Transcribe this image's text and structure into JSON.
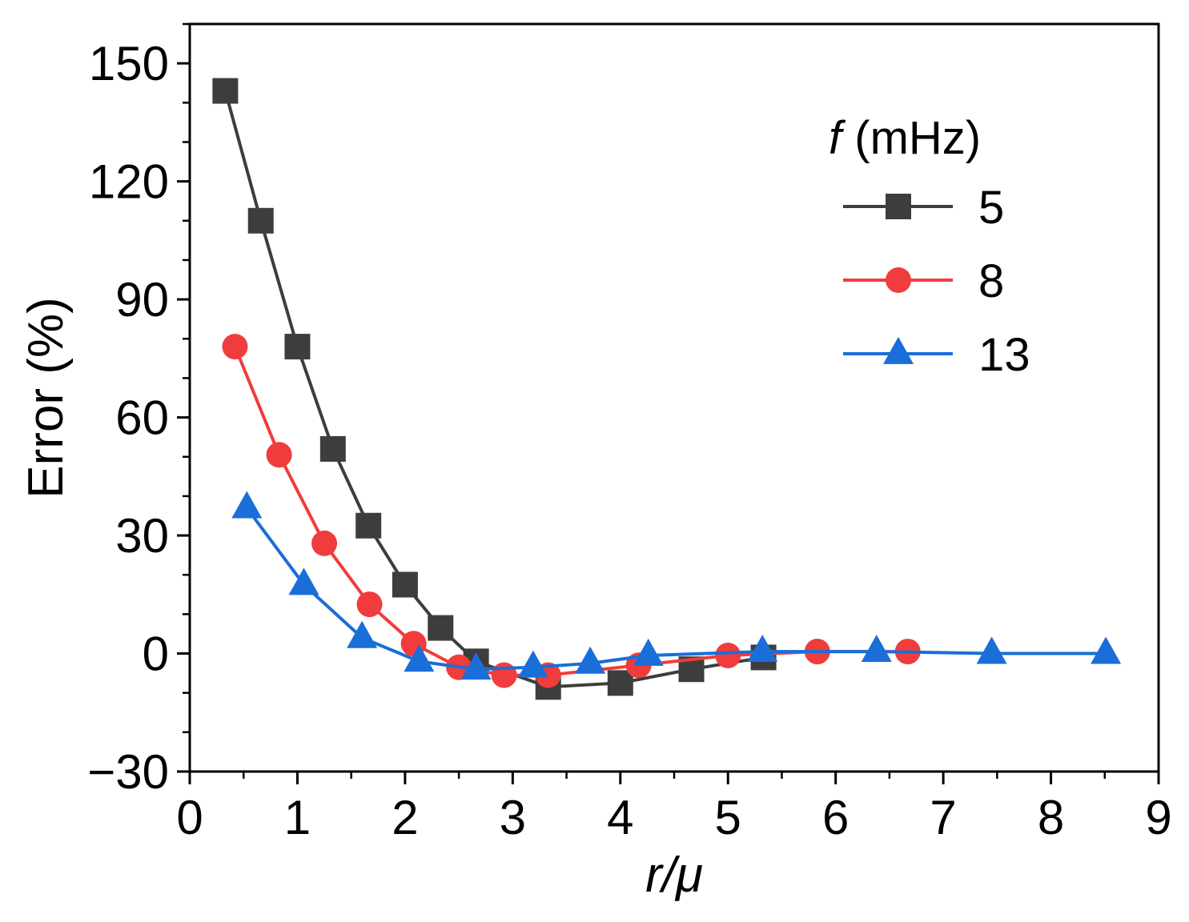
{
  "chart_data": {
    "type": "line",
    "title": "",
    "xlabel": "r/μ",
    "ylabel": "Error (%)",
    "xlim": [
      0,
      9
    ],
    "ylim": [
      -30,
      160
    ],
    "xticks": [
      0,
      1,
      2,
      3,
      4,
      5,
      6,
      7,
      8,
      9
    ],
    "yticks": [
      -30,
      0,
      30,
      60,
      90,
      120,
      150
    ],
    "xtick_labels": [
      "0",
      "1",
      "2",
      "3",
      "4",
      "5",
      "6",
      "7",
      "8",
      "9"
    ],
    "ytick_labels": [
      "−30",
      "0",
      "30",
      "60",
      "90",
      "120",
      "150"
    ],
    "legend": {
      "title_var": "f",
      "title_unit": "(mHz)",
      "placement": "top-right"
    },
    "series": [
      {
        "name": "5",
        "color": "#3d3d3d",
        "marker": "square",
        "x": [
          0.33,
          0.66,
          1.0,
          1.33,
          1.66,
          2.0,
          2.33,
          2.66,
          3.33,
          4.0,
          4.66,
          5.33
        ],
        "y": [
          143,
          110,
          78,
          52,
          32.5,
          17.5,
          6.5,
          -2,
          -8.5,
          -7.5,
          -4,
          -1
        ]
      },
      {
        "name": "8",
        "color": "#f03c3c",
        "marker": "circle",
        "x": [
          0.42,
          0.83,
          1.25,
          1.67,
          2.08,
          2.5,
          2.92,
          3.33,
          4.17,
          5.0,
          5.83,
          6.67
        ],
        "y": [
          78,
          50.5,
          28,
          12.5,
          2.5,
          -3.5,
          -5.5,
          -5.5,
          -3,
          -0.5,
          0.5,
          0.5
        ]
      },
      {
        "name": "13",
        "color": "#1a6ed8",
        "marker": "triangle",
        "x": [
          0.53,
          1.06,
          1.6,
          2.13,
          2.66,
          3.19,
          3.72,
          4.26,
          5.32,
          6.38,
          7.45,
          8.51
        ],
        "y": [
          37,
          17.5,
          4,
          -2,
          -4,
          -3.5,
          -2.5,
          -0.5,
          0.5,
          0.5,
          0,
          0
        ]
      }
    ]
  }
}
